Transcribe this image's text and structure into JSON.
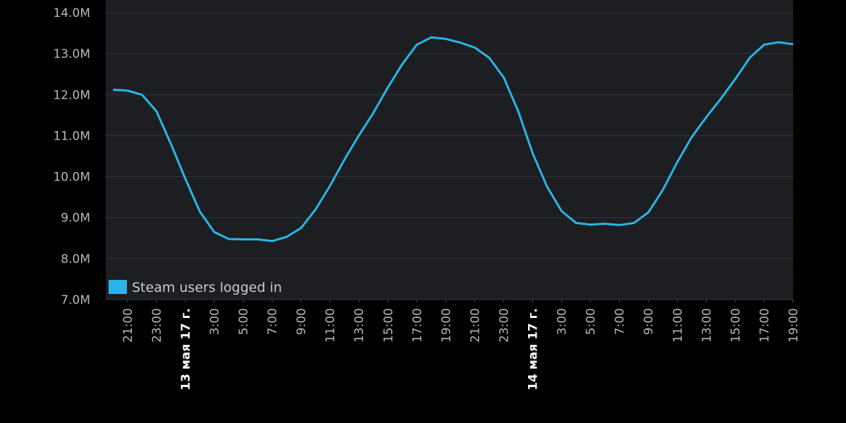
{
  "chart_data": {
    "type": "line",
    "x": [
      "2017-05-12T20:00",
      "2017-05-12T21:00",
      "2017-05-12T22:00",
      "2017-05-12T23:00",
      "2017-05-13T00:00",
      "2017-05-13T01:00",
      "2017-05-13T02:00",
      "2017-05-13T03:00",
      "2017-05-13T04:00",
      "2017-05-13T05:00",
      "2017-05-13T06:00",
      "2017-05-13T07:00",
      "2017-05-13T08:00",
      "2017-05-13T09:00",
      "2017-05-13T10:00",
      "2017-05-13T11:00",
      "2017-05-13T12:00",
      "2017-05-13T13:00",
      "2017-05-13T14:00",
      "2017-05-13T15:00",
      "2017-05-13T16:00",
      "2017-05-13T17:00",
      "2017-05-13T18:00",
      "2017-05-13T19:00",
      "2017-05-13T20:00",
      "2017-05-13T21:00",
      "2017-05-13T22:00",
      "2017-05-13T23:00",
      "2017-05-14T00:00",
      "2017-05-14T01:00",
      "2017-05-14T02:00",
      "2017-05-14T03:00",
      "2017-05-14T04:00",
      "2017-05-14T05:00",
      "2017-05-14T06:00",
      "2017-05-14T07:00",
      "2017-05-14T08:00",
      "2017-05-14T09:00",
      "2017-05-14T10:00",
      "2017-05-14T11:00",
      "2017-05-14T12:00",
      "2017-05-14T13:00",
      "2017-05-14T14:00",
      "2017-05-14T15:00",
      "2017-05-14T16:00",
      "2017-05-14T17:00",
      "2017-05-14T18:00",
      "2017-05-14T19:00"
    ],
    "series": [
      {
        "name": "Steam users logged in",
        "color": "#29b6e8",
        "values": [
          12120000,
          12100000,
          12000000,
          11600000,
          10800000,
          9950000,
          9150000,
          8650000,
          8480000,
          8470000,
          8470000,
          8430000,
          8530000,
          8750000,
          9200000,
          9780000,
          10420000,
          11010000,
          11560000,
          12180000,
          12750000,
          13220000,
          13400000,
          13360000,
          13270000,
          13150000,
          12900000,
          12420000,
          11600000,
          10570000,
          9750000,
          9160000,
          8870000,
          8830000,
          8850000,
          8820000,
          8870000,
          9130000,
          9680000,
          10360000,
          10970000,
          11450000,
          11900000,
          12380000,
          12900000,
          13220000,
          13280000,
          13230000
        ]
      }
    ],
    "xlim": [
      "2017-05-12T19:30",
      "2017-05-14T19:00"
    ],
    "xticks": [
      {
        "value": "2017-05-12T21:00",
        "label": "21:00"
      },
      {
        "value": "2017-05-12T23:00",
        "label": "23:00"
      },
      {
        "value": "2017-05-13T01:00",
        "label": "13 мая 17 г."
      },
      {
        "value": "2017-05-13T03:00",
        "label": "3:00"
      },
      {
        "value": "2017-05-13T05:00",
        "label": "5:00"
      },
      {
        "value": "2017-05-13T07:00",
        "label": "7:00"
      },
      {
        "value": "2017-05-13T09:00",
        "label": "9:00"
      },
      {
        "value": "2017-05-13T11:00",
        "label": "11:00"
      },
      {
        "value": "2017-05-13T13:00",
        "label": "13:00"
      },
      {
        "value": "2017-05-13T15:00",
        "label": "15:00"
      },
      {
        "value": "2017-05-13T17:00",
        "label": "17:00"
      },
      {
        "value": "2017-05-13T19:00",
        "label": "19:00"
      },
      {
        "value": "2017-05-13T21:00",
        "label": "21:00"
      },
      {
        "value": "2017-05-13T23:00",
        "label": "23:00"
      },
      {
        "value": "2017-05-14T01:00",
        "label": "14 мая 17 г."
      },
      {
        "value": "2017-05-14T03:00",
        "label": "3:00"
      },
      {
        "value": "2017-05-14T05:00",
        "label": "5:00"
      },
      {
        "value": "2017-05-14T07:00",
        "label": "7:00"
      },
      {
        "value": "2017-05-14T09:00",
        "label": "9:00"
      },
      {
        "value": "2017-05-14T11:00",
        "label": "11:00"
      },
      {
        "value": "2017-05-14T13:00",
        "label": "13:00"
      },
      {
        "value": "2017-05-14T15:00",
        "label": "15:00"
      },
      {
        "value": "2017-05-14T17:00",
        "label": "17:00"
      },
      {
        "value": "2017-05-14T19:00",
        "label": "19:00"
      }
    ],
    "ylim": [
      7000000,
      14310000
    ],
    "yticks": [
      {
        "value": 7000000,
        "label": "7.0M"
      },
      {
        "value": 8000000,
        "label": "8.0M"
      },
      {
        "value": 9000000,
        "label": "9.0M"
      },
      {
        "value": 10000000,
        "label": "10.0M"
      },
      {
        "value": 11000000,
        "label": "11.0M"
      },
      {
        "value": 12000000,
        "label": "12.0M"
      },
      {
        "value": 13000000,
        "label": "13.0M"
      },
      {
        "value": 14000000,
        "label": "14.0M"
      }
    ],
    "grid": true,
    "legend": "lower left"
  }
}
